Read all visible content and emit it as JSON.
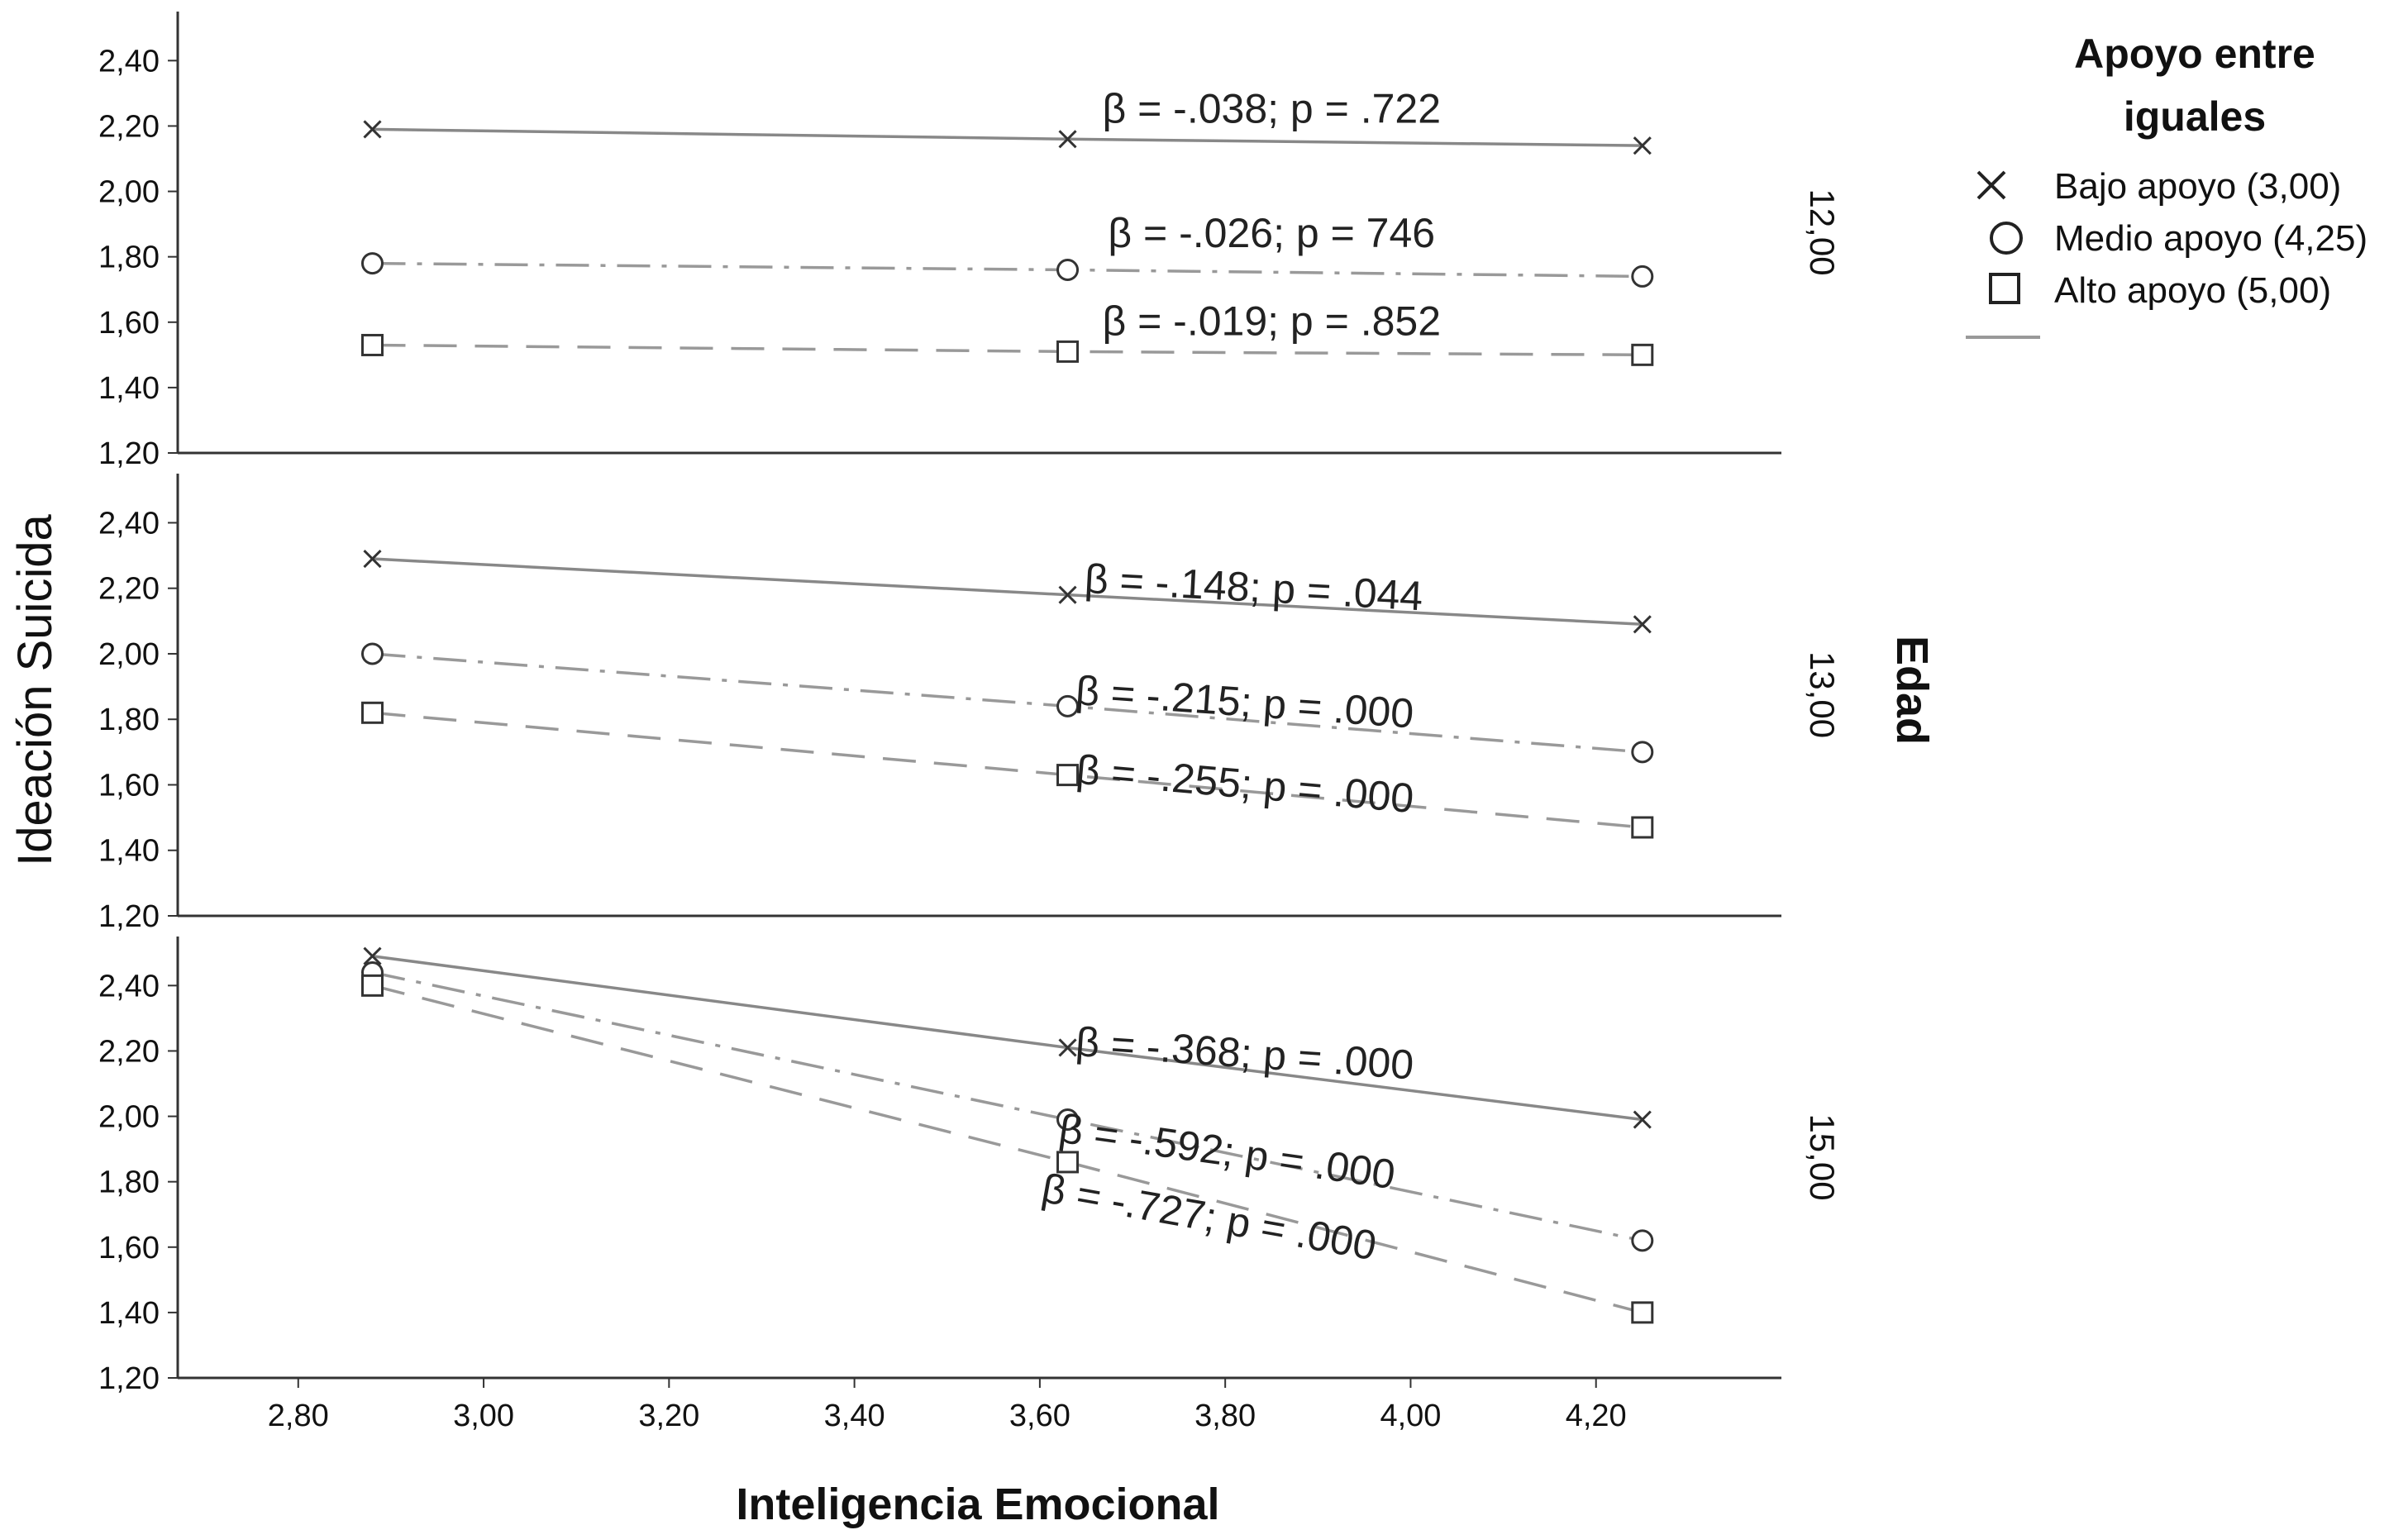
{
  "chart_data": {
    "type": "line",
    "xlabel": "Inteligencia Emocional",
    "ylabel": "Ideación Suicida",
    "facet_title": "Edad",
    "xlim": [
      2.67,
      4.4
    ],
    "ylim": [
      1.2,
      2.55
    ],
    "x_ticks": [
      "2,80",
      "3,00",
      "3,20",
      "3,40",
      "3,60",
      "3,80",
      "4,00",
      "4,20"
    ],
    "x_tick_values": [
      2.8,
      3.0,
      3.2,
      3.4,
      3.6,
      3.8,
      4.0,
      4.2
    ],
    "y_ticks": [
      "1,20",
      "1,40",
      "1,60",
      "1,80",
      "2,00",
      "2,20",
      "2,40"
    ],
    "y_tick_values": [
      1.2,
      1.4,
      1.6,
      1.8,
      2.0,
      2.2,
      2.4
    ],
    "legend": {
      "title": "Apoyo entre iguales",
      "title_lines": [
        "Apoyo entre",
        "iguales"
      ],
      "placement": "top-right",
      "items": [
        {
          "label": "Bajo apoyo (3,00)",
          "marker": "x-marker-icon"
        },
        {
          "label": "Medio apoyo (4,25)",
          "marker": "circle-marker-icon"
        },
        {
          "label": "Alto apoyo (5,00)",
          "marker": "square-marker-icon"
        }
      ]
    },
    "panels": [
      {
        "facet": "12,00",
        "x": [
          2.88,
          3.63,
          4.25
        ],
        "series": [
          {
            "name": "Bajo apoyo (3,00)",
            "style": "solid",
            "marker": "x",
            "values": [
              2.19,
              2.16,
              2.14
            ],
            "annotation": "β = -.038; p = .722",
            "annotation_at": [
              3.85,
              2.21
            ],
            "annotation_angle": 0
          },
          {
            "name": "Medio apoyo (4,25)",
            "style": "dashdot",
            "marker": "circle",
            "values": [
              1.78,
              1.76,
              1.74
            ],
            "annotation": "β = -.026; p = 746",
            "annotation_at": [
              3.85,
              1.83
            ],
            "annotation_angle": 0
          },
          {
            "name": "Alto apoyo (5,00)",
            "style": "dashed",
            "marker": "square",
            "values": [
              1.53,
              1.51,
              1.5
            ],
            "annotation": "β = -.019; p = .852",
            "annotation_at": [
              3.85,
              1.56
            ],
            "annotation_angle": 0
          }
        ]
      },
      {
        "facet": "13,00",
        "x": [
          2.88,
          3.63,
          4.25
        ],
        "series": [
          {
            "name": "Bajo apoyo (3,00)",
            "style": "solid",
            "marker": "x",
            "values": [
              2.29,
              2.18,
              2.09
            ],
            "annotation": "β = -.148; p = .044",
            "annotation_at": [
              3.83,
              2.16
            ],
            "annotation_angle": 3
          },
          {
            "name": "Medio apoyo (4,25)",
            "style": "dashdot",
            "marker": "circle",
            "values": [
              2.0,
              1.84,
              1.7
            ],
            "annotation": "β = -.215; p = .000",
            "annotation_at": [
              3.82,
              1.81
            ],
            "annotation_angle": 4
          },
          {
            "name": "Alto apoyo (5,00)",
            "style": "dashed",
            "marker": "square",
            "values": [
              1.82,
              1.63,
              1.47
            ],
            "annotation": "β = -.255; p = .000",
            "annotation_at": [
              3.82,
              1.56
            ],
            "annotation_angle": 5
          }
        ]
      },
      {
        "facet": "15,00",
        "x": [
          2.88,
          3.63,
          4.25
        ],
        "series": [
          {
            "name": "Bajo apoyo (3,00)",
            "style": "solid",
            "marker": "x",
            "values": [
              2.49,
              2.21,
              1.99
            ],
            "annotation": "β = -.368; p = .000",
            "annotation_at": [
              3.82,
              2.15
            ],
            "annotation_angle": 4
          },
          {
            "name": "Medio apoyo (4,25)",
            "style": "dashdot",
            "marker": "circle",
            "values": [
              2.44,
              1.99,
              1.62
            ],
            "annotation": "β = -.592; p = .000",
            "annotation_at": [
              3.8,
              1.85
            ],
            "annotation_angle": 8
          },
          {
            "name": "Alto apoyo (5,00)",
            "style": "dashed",
            "marker": "square",
            "values": [
              2.4,
              1.86,
              1.4
            ],
            "annotation": "β = -.727; p = .000",
            "annotation_at": [
              3.78,
              1.65
            ],
            "annotation_angle": 10
          }
        ]
      }
    ]
  }
}
